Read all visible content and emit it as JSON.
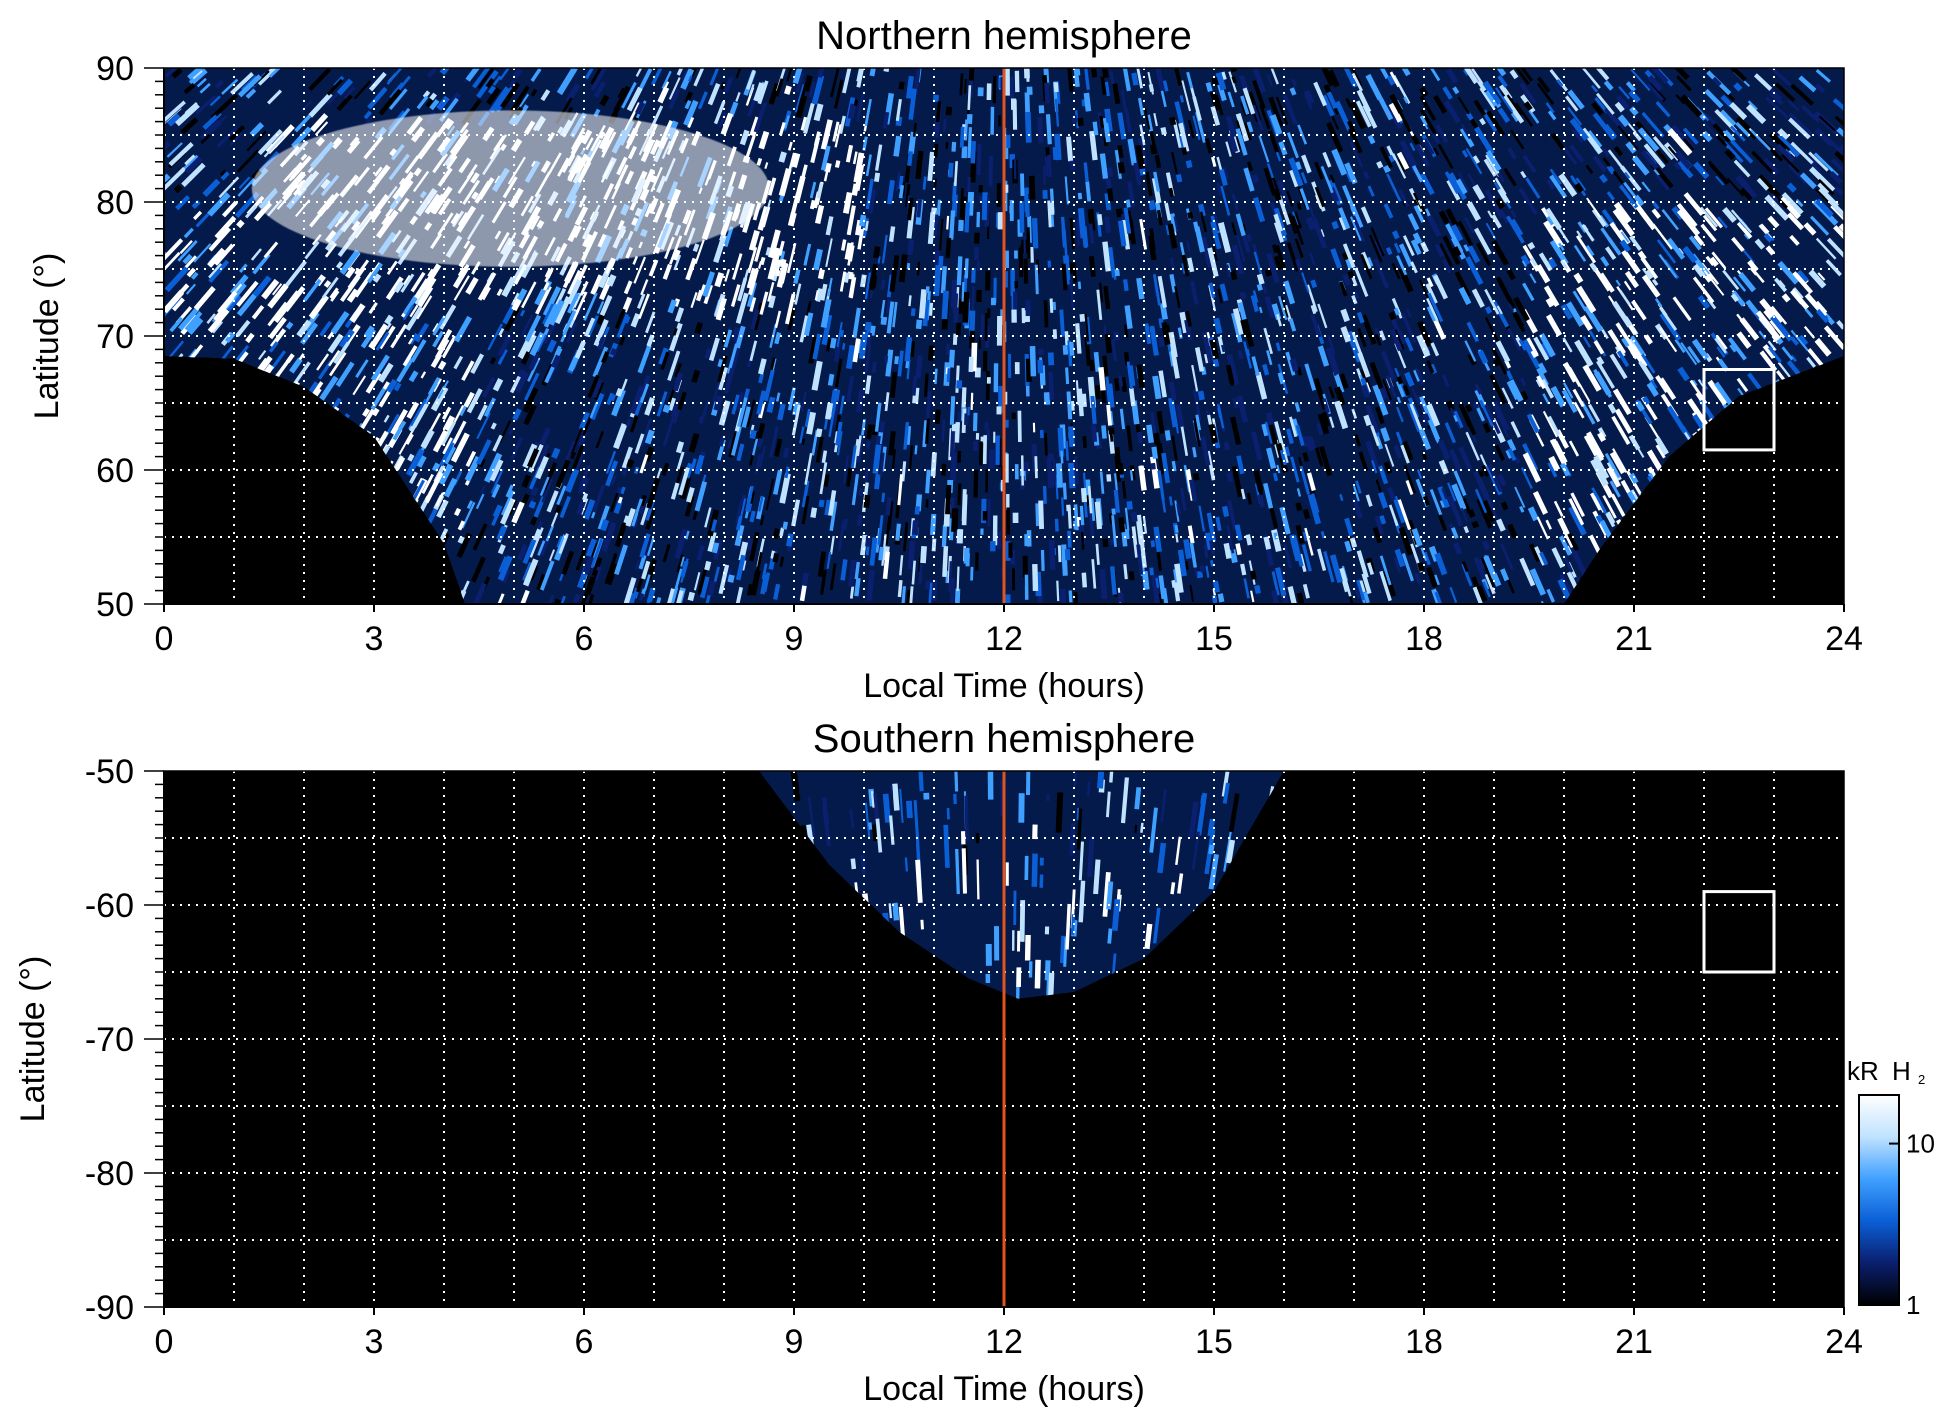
{
  "colorbar": {
    "unit_prefix": "kR",
    "unit_species": "H",
    "unit_subscript": "2",
    "tick_labels": [
      "1",
      "10"
    ],
    "scale": "log",
    "range": [
      1,
      20
    ],
    "colors": [
      "#000000",
      "#0a1f6e",
      "#0b5fd6",
      "#3fa0ff",
      "#bfe2ff",
      "#ffffff"
    ]
  },
  "noon_line_color": "#e2541e",
  "chart_data": [
    {
      "type": "heatmap",
      "title": "Northern hemisphere",
      "xlabel": "Local Time (hours)",
      "ylabel": "Latitude (°)",
      "xlim": [
        0,
        24
      ],
      "ylim": [
        50,
        90
      ],
      "x_ticks": [
        "0",
        "3",
        "6",
        "9",
        "12",
        "15",
        "18",
        "21",
        "24"
      ],
      "y_ticks": [
        "50",
        "60",
        "70",
        "80",
        "90"
      ],
      "grid": true,
      "grid_x_step_hours": 1,
      "grid_y_step_deg": 5,
      "reference_line_x": 12,
      "box": {
        "x": [
          22,
          23
        ],
        "y": [
          61.5,
          67.5
        ]
      },
      "emission": {
        "coverage_boundary_lat": [
          {
            "x": 0,
            "y": 68.5
          },
          {
            "x": 1,
            "y": 68.3
          },
          {
            "x": 2,
            "y": 66.2
          },
          {
            "x": 3,
            "y": 62.5
          },
          {
            "x": 4,
            "y": 54.5
          },
          {
            "x": 4.3,
            "y": 50
          },
          {
            "x": 20,
            "y": 50
          },
          {
            "x": 20.5,
            "y": 54
          },
          {
            "x": 21.5,
            "y": 61
          },
          {
            "x": 22.5,
            "y": 65.5
          },
          {
            "x": 23.5,
            "y": 67.5
          },
          {
            "x": 24,
            "y": 68.5
          }
        ],
        "bright_region": {
          "x": [
            1.5,
            10
          ],
          "y": [
            72,
            86
          ]
        },
        "auroral_arc_dusk": {
          "x": [
            19,
            24
          ],
          "y": [
            55,
            80
          ]
        },
        "auroral_arc_dawn": {
          "x": [
            0,
            5
          ],
          "y": [
            55,
            80
          ]
        }
      }
    },
    {
      "type": "heatmap",
      "title": "Southern hemisphere",
      "xlabel": "Local Time (hours)",
      "ylabel": "Latitude (°)",
      "xlim": [
        0,
        24
      ],
      "ylim": [
        -90,
        -50
      ],
      "x_ticks": [
        "0",
        "3",
        "6",
        "9",
        "12",
        "15",
        "18",
        "21",
        "24"
      ],
      "y_ticks": [
        "-50",
        "-60",
        "-70",
        "-80",
        "-90"
      ],
      "grid": true,
      "grid_x_step_hours": 1,
      "grid_y_step_deg": 5,
      "reference_line_x": 12,
      "box": {
        "x": [
          22,
          23
        ],
        "y": [
          -65,
          -59
        ]
      },
      "emission": {
        "coverage_boundary_lat": [
          {
            "x": 8.5,
            "y": -50
          },
          {
            "x": 9.5,
            "y": -57
          },
          {
            "x": 10.5,
            "y": -62
          },
          {
            "x": 11.5,
            "y": -65.5
          },
          {
            "x": 12.2,
            "y": -67
          },
          {
            "x": 13,
            "y": -66.5
          },
          {
            "x": 14,
            "y": -64
          },
          {
            "x": 15,
            "y": -59
          },
          {
            "x": 16,
            "y": -50
          }
        ],
        "auroral_arc": {
          "x": [
            9,
            15.5
          ],
          "y": [
            -66,
            -57
          ]
        }
      }
    }
  ]
}
